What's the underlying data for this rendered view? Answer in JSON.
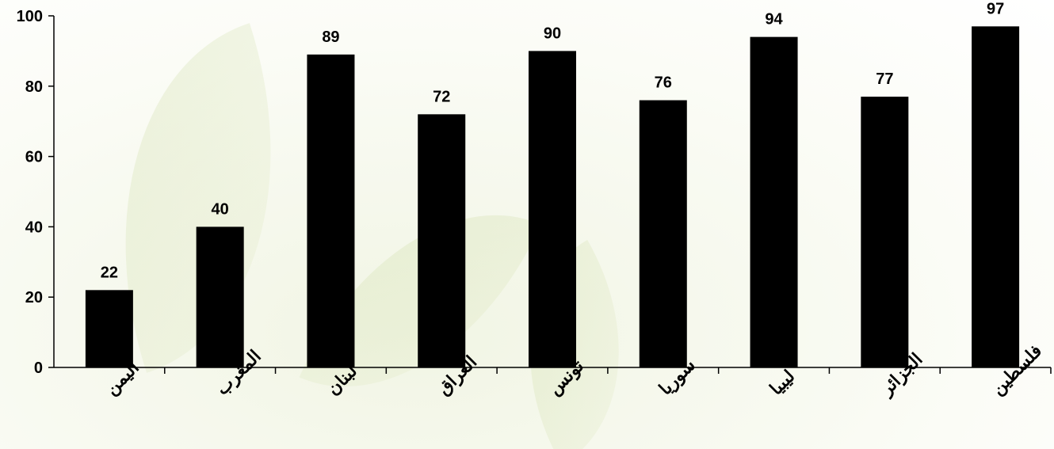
{
  "chart_data": {
    "type": "bar",
    "title": "",
    "xlabel": "",
    "ylabel": "",
    "categories": [
      "اليمن",
      "المغرب",
      "لبنان",
      "العراق",
      "تونس",
      "سوريا",
      "ليبيا",
      "الجزائر",
      "فلسطين"
    ],
    "values": [
      22,
      40,
      89,
      72,
      90,
      76,
      94,
      77,
      97
    ],
    "ylim": [
      0,
      100
    ],
    "yticks": [
      0,
      20,
      40,
      60,
      80,
      100
    ],
    "ytick_labels": [
      "0",
      "20",
      "40",
      "60",
      "80",
      "100"
    ],
    "bar_color": "#000000",
    "grid": false,
    "legend": "none",
    "data_labels": true
  }
}
